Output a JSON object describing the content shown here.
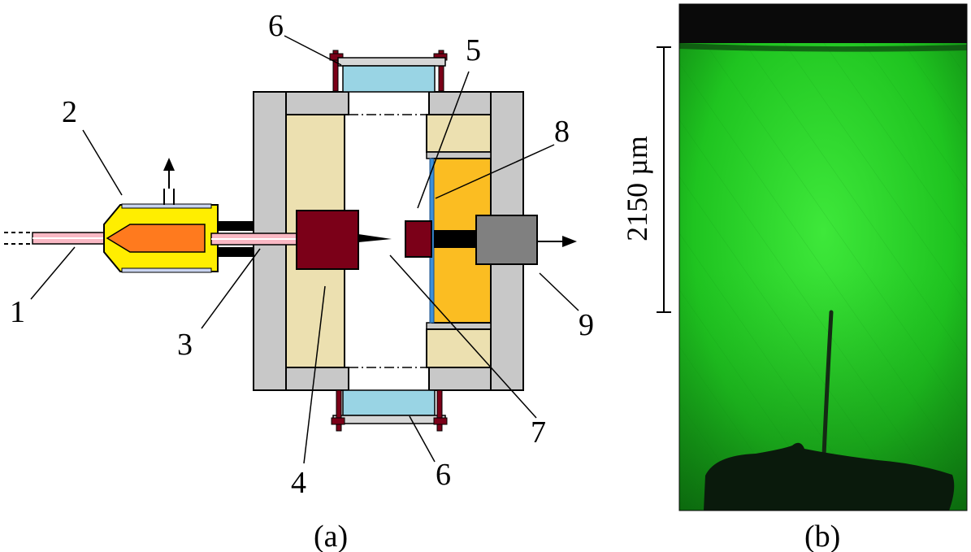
{
  "panel_a": {
    "caption": "(a)",
    "labels": {
      "l1": "1",
      "l2": "2",
      "l3": "3",
      "l4": "4",
      "l5": "5",
      "l6_top": "6",
      "l6_bottom": "6",
      "l7": "7",
      "l8": "8",
      "l9": "9"
    }
  },
  "panel_b": {
    "caption": "(b)",
    "scale_bar_label": "2150  µm"
  },
  "colors": {
    "frame_gray": "#c8c8c8",
    "insulator_beige": "#ece0b0",
    "electrode_red": "#7b0018",
    "heater_yellow": "#ffee00",
    "heater_orange": "#ff7a1e",
    "window_blue": "#99d4e4",
    "fiber_pink": "#f9b8c4",
    "plate_orange": "#fbbd22",
    "sensor_gray": "#808080",
    "image_green": "#22cc22"
  }
}
